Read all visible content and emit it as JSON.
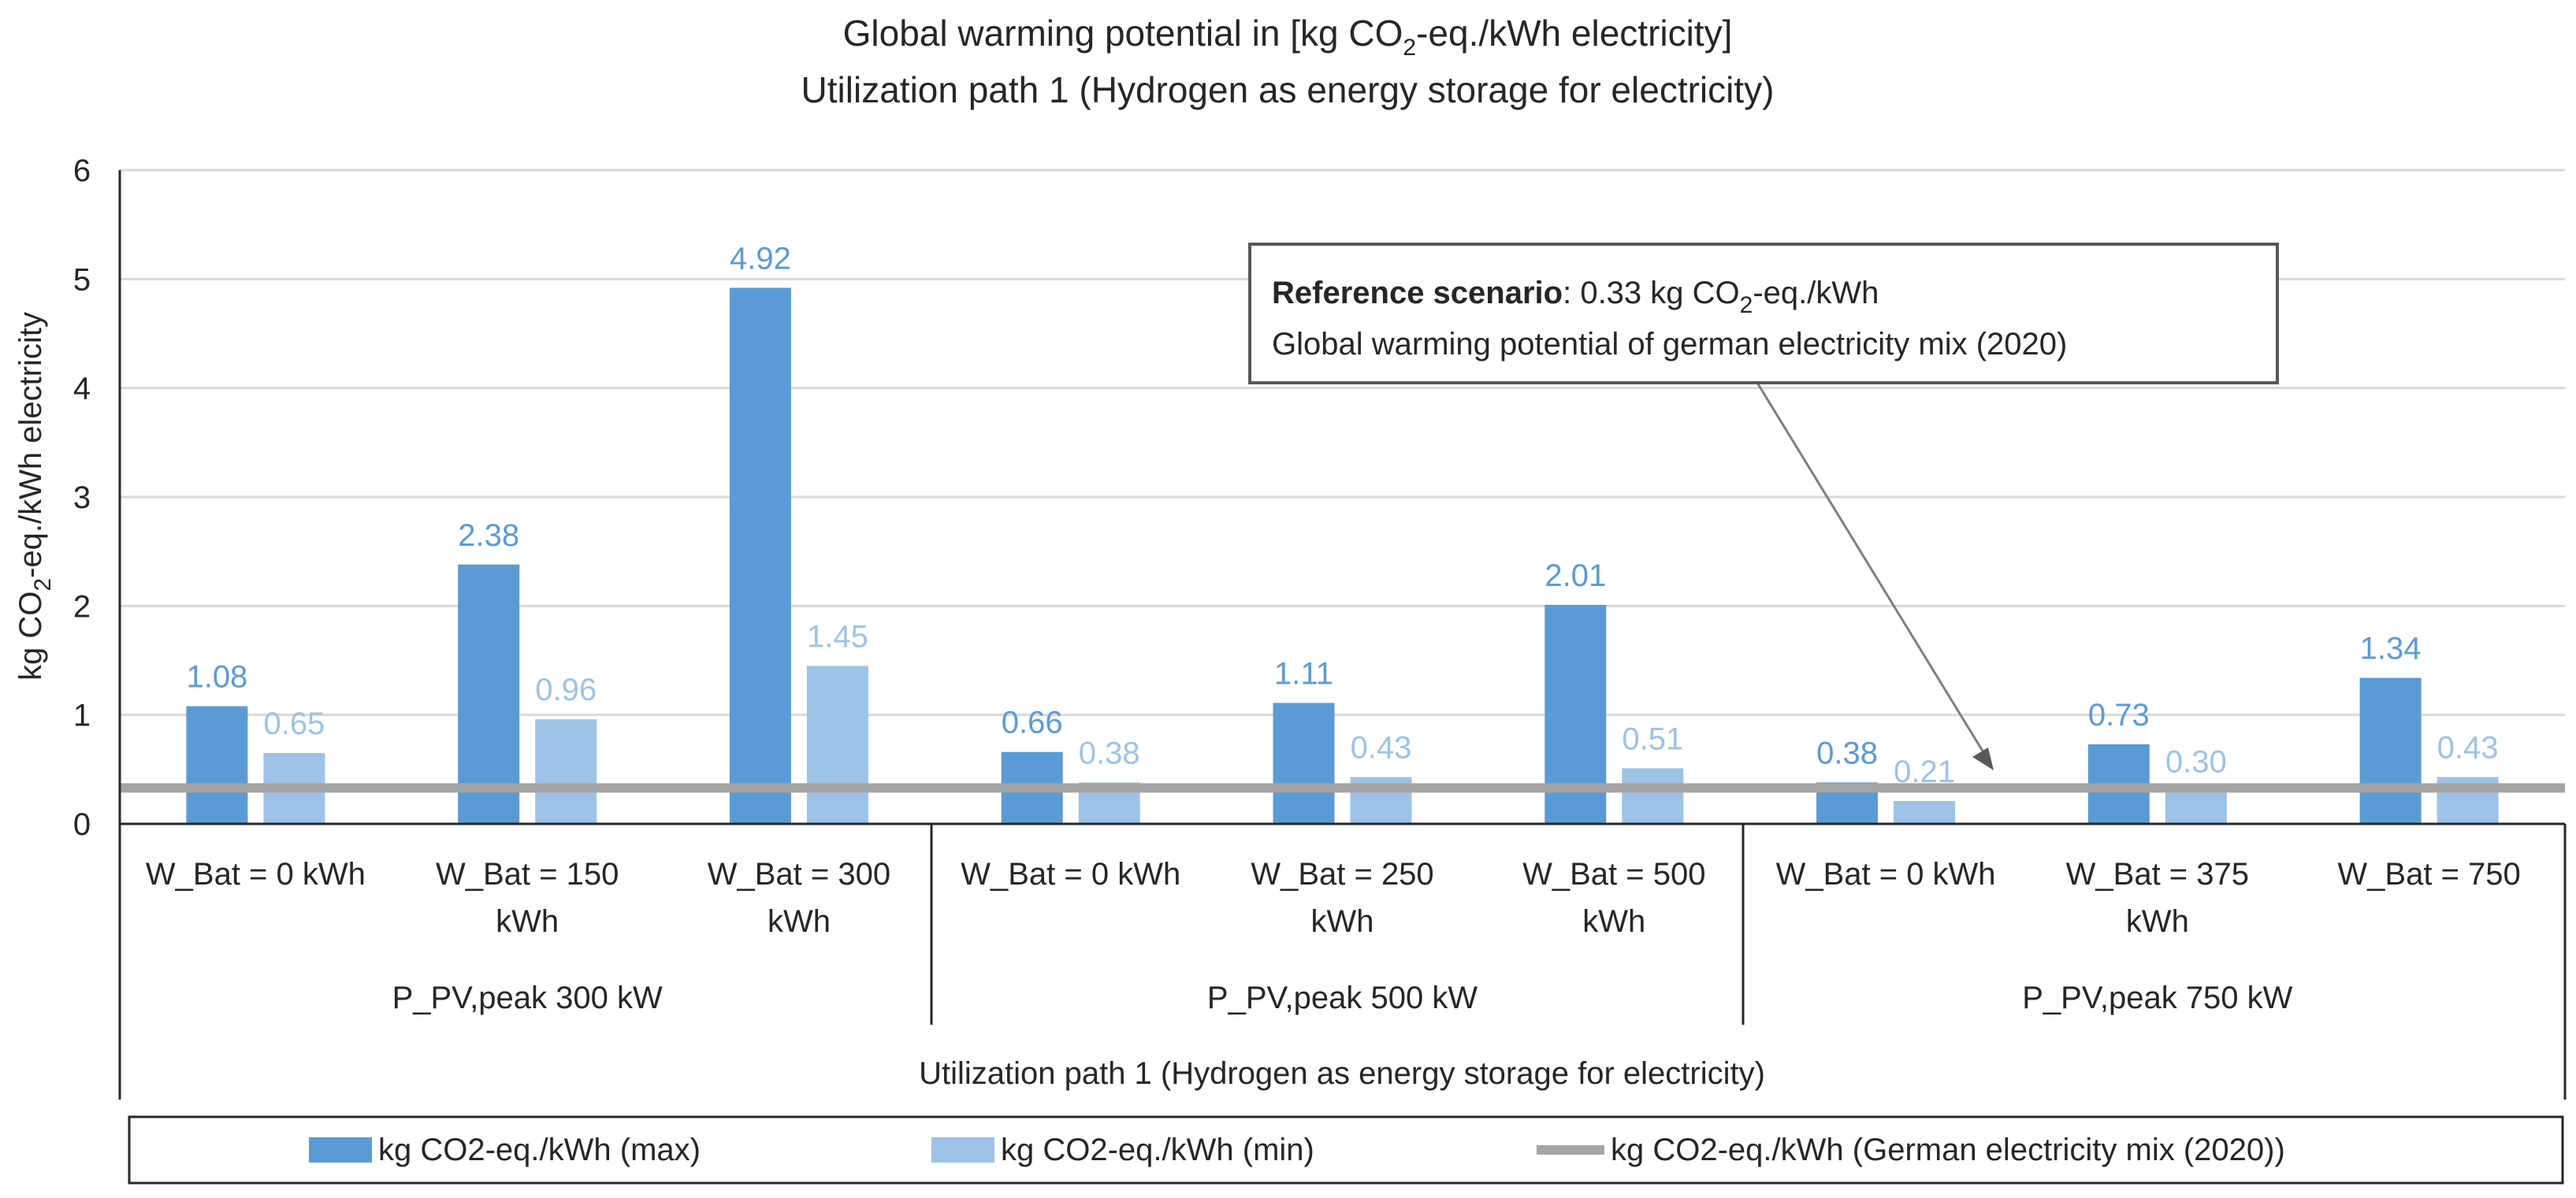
{
  "chart_data": {
    "type": "bar",
    "title": "Global warming potential in [kg CO2-eq./kWh electricity]",
    "title_parts": {
      "before": "Global warming potential in [kg CO",
      "sub": "2",
      "after": "-eq./kWh electricity]"
    },
    "subtitle": "Utilization path 1 (Hydrogen as energy storage for electricity)",
    "ylabel": "kg CO2-eq./kWh electricity",
    "ylabel_parts": {
      "before": "kg CO",
      "sub": "2",
      "after": "-eq./kWh electricity"
    },
    "ylim": [
      0,
      6
    ],
    "yticks": [
      "0",
      "1",
      "2",
      "3",
      "4",
      "5",
      "6"
    ],
    "grid": true,
    "categories": [
      [
        "W_Bat = 0 kWh"
      ],
      [
        "W_Bat = 150",
        "kWh"
      ],
      [
        "W_Bat = 300",
        "kWh"
      ],
      [
        "W_Bat = 0 kWh"
      ],
      [
        "W_Bat = 250",
        "kWh"
      ],
      [
        "W_Bat = 500",
        "kWh"
      ],
      [
        "W_Bat = 0 kWh"
      ],
      [
        "W_Bat = 375",
        "kWh"
      ],
      [
        "W_Bat = 750"
      ]
    ],
    "groups": [
      "P_PV,peak 300 kW",
      "P_PV,peak 500 kW",
      "P_PV,peak 750 kW"
    ],
    "outer_group": "Utilization path 1 (Hydrogen as energy storage for electricity)",
    "series": [
      {
        "name": "kg CO2-eq./kWh (max)",
        "color": "#5b9bd5",
        "values": [
          1.08,
          2.38,
          4.92,
          0.66,
          1.11,
          2.01,
          0.38,
          0.73,
          1.34
        ],
        "labels": [
          "1.08",
          "2.38",
          "4.92",
          "0.66",
          "1.11",
          "2.01",
          "0.38",
          "0.73",
          "1.34"
        ]
      },
      {
        "name": "kg CO2-eq./kWh (min)",
        "color": "#9dc3e6",
        "values": [
          0.65,
          0.96,
          1.45,
          0.38,
          0.43,
          0.51,
          0.21,
          0.3,
          0.43
        ],
        "labels": [
          "0.65",
          "0.96",
          "1.45",
          "0.38",
          "0.43",
          "0.51",
          "0.21",
          "0.30",
          "0.43"
        ]
      }
    ],
    "reference_line": {
      "name": "kg CO2-eq./kWh (German electricity mix (2020))",
      "value": 0.33,
      "color": "#a5a5a5"
    },
    "annotation": {
      "bold": "Reference scenario",
      "line1_rest_before": ": 0.33 kg CO",
      "line1_sub": "2",
      "line1_rest_after": "-eq./kWh",
      "line2": "Global warming potential of german electricity mix (2020)"
    },
    "legend_position": "bottom"
  }
}
